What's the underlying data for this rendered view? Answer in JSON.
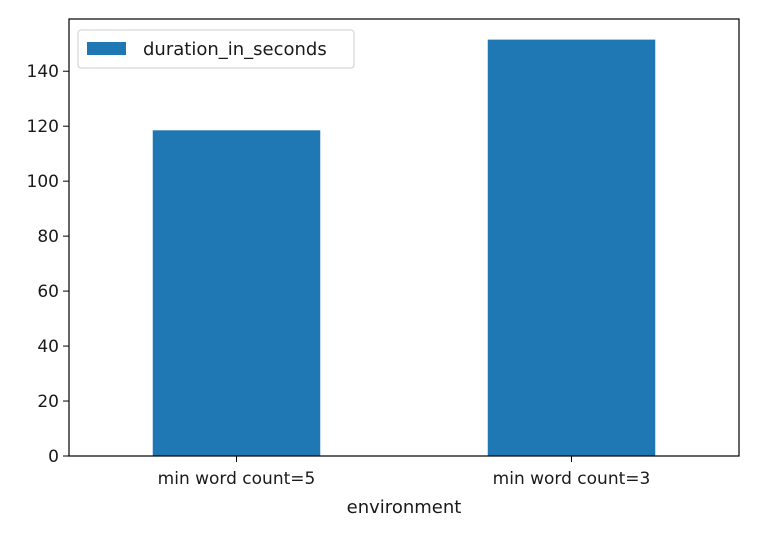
{
  "chart_data": {
    "type": "bar",
    "categories": [
      "min word count=5",
      "min word count=3"
    ],
    "series": [
      {
        "name": "duration_in_seconds",
        "values": [
          118.5,
          151.5
        ],
        "color": "#1f77b4"
      }
    ],
    "xlabel": "environment",
    "ylabel": "",
    "ylim": [
      0,
      159
    ],
    "yticks": [
      0,
      20,
      40,
      60,
      80,
      100,
      120,
      140
    ],
    "grid": false,
    "legend": {
      "position": "top-left",
      "entries": [
        "duration_in_seconds"
      ]
    }
  }
}
